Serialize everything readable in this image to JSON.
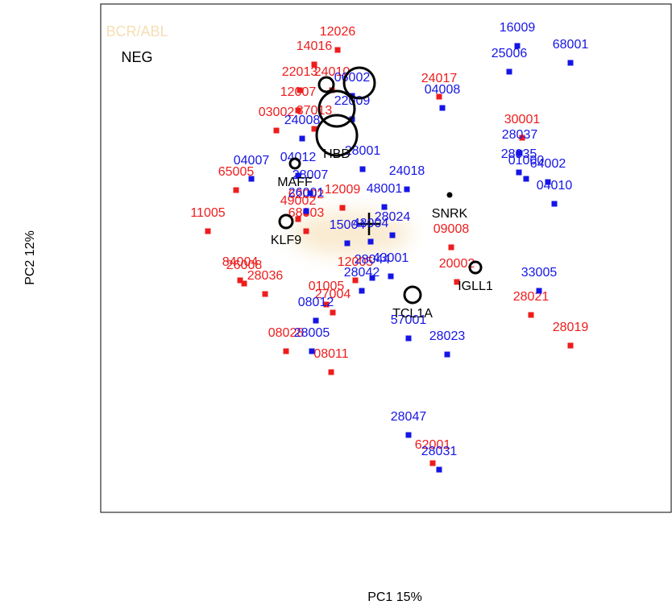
{
  "chart_data": {
    "type": "scatter",
    "xlabel": "PC1 15%",
    "ylabel": "PC2 12%",
    "xlim": [
      0,
      709
    ],
    "ylim": [
      0,
      631
    ],
    "legend": [
      {
        "text": "BCR/ABL",
        "color": "#f5deb3"
      },
      {
        "text": "NEG",
        "color": "#000000"
      }
    ],
    "series": [
      {
        "color": "#ee1c1c",
        "labels": [
          "12026",
          "14016",
          "22013",
          "24010",
          "24017",
          "12007",
          "03002",
          "37013",
          "30001",
          "65005",
          "11005",
          "84004",
          "26008",
          "28036",
          "01005",
          "27004",
          "09008",
          "20002",
          "28021",
          "28019",
          "08028",
          "08011",
          "12005",
          "62001",
          "49002",
          "68003",
          "62002",
          "12009"
        ],
        "x": [
          294,
          265,
          247,
          287,
          420,
          245,
          218,
          265,
          523,
          168,
          133,
          173,
          178,
          204,
          280,
          288,
          435,
          442,
          534,
          583,
          230,
          286,
          316,
          412,
          245,
          255,
          255,
          300
        ],
        "values": [
          574,
          556,
          524,
          524,
          516,
          499,
          474,
          476,
          465,
          400,
          349,
          288,
          284,
          271,
          258,
          248,
          329,
          286,
          245,
          207,
          200,
          174,
          288,
          61,
          364,
          349,
          372,
          378
        ]
      },
      {
        "color": "#1515e6",
        "labels": [
          "16009",
          "68001",
          "25006",
          "06002",
          "04008",
          "24008",
          "22009",
          "28037",
          "28035",
          "01000",
          "64002",
          "04010",
          "04007",
          "28001",
          "24018",
          "48001",
          "28024",
          "15004",
          "43004",
          "28044",
          "28042",
          "43001",
          "08012",
          "28005",
          "57001",
          "28023",
          "28047",
          "28031",
          "33005",
          "28007",
          "26001",
          "04012"
        ],
        "x": [
          517,
          583,
          507,
          312,
          424,
          250,
          312,
          520,
          519,
          528,
          555,
          563,
          187,
          325,
          380,
          352,
          362,
          306,
          335,
          337,
          324,
          360,
          267,
          262,
          382,
          430,
          382,
          420,
          544,
          260,
          255,
          245
        ],
        "values": [
          579,
          558,
          547,
          517,
          502,
          464,
          488,
          446,
          422,
          414,
          410,
          383,
          414,
          426,
          401,
          379,
          344,
          334,
          336,
          291,
          275,
          293,
          238,
          200,
          216,
          196,
          96,
          53,
          275,
          396,
          374,
          418
        ]
      }
    ],
    "genes": {
      "color": "#000000",
      "labels": [
        "HBD",
        "MAFF",
        "KLF9",
        "SNRK",
        "IGLL1",
        "TCL1A",
        null,
        null,
        null
      ],
      "x": [
        293,
        241,
        230,
        433,
        465,
        387,
        321,
        293,
        280
      ],
      "values": [
        468,
        433,
        361,
        394,
        304,
        270,
        533,
        501,
        531
      ],
      "sizes": [
        25,
        6,
        8,
        2,
        7,
        10,
        19,
        22,
        9
      ]
    }
  }
}
